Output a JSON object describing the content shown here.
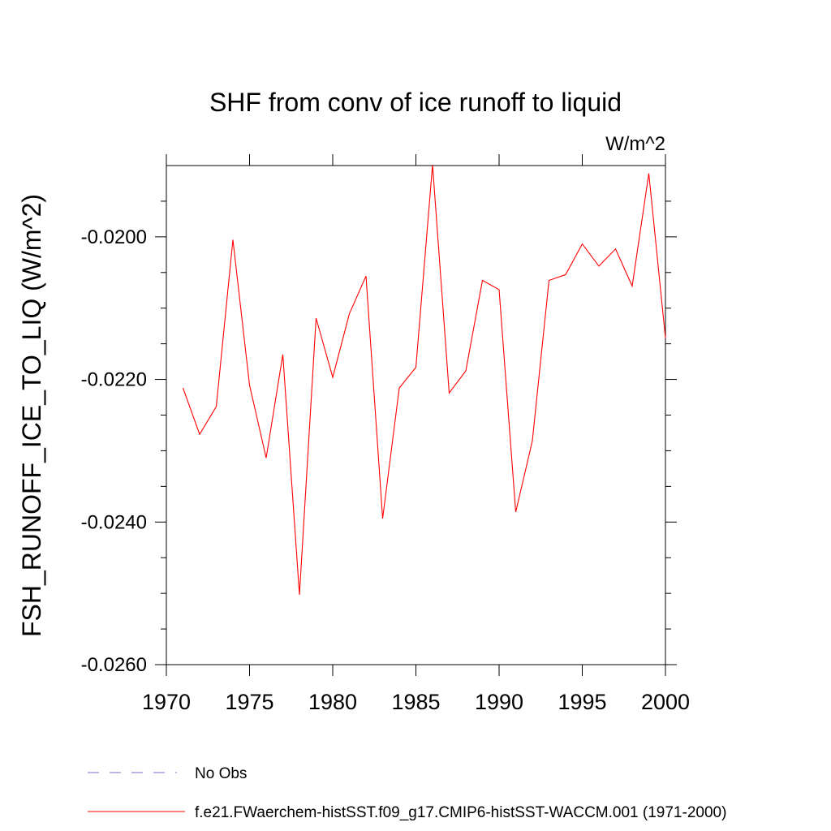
{
  "chart_data": {
    "type": "line",
    "title": "SHF from conv of ice runoff to liquid",
    "units_label": "W/m^2",
    "ylabel": "FSH_RUNOFF_ICE_TO_LIQ  (W/m^2)",
    "xlabel": "",
    "xlim": [
      1970,
      2000
    ],
    "ylim": [
      -0.026,
      -0.019
    ],
    "x_ticks": [
      1970,
      1975,
      1980,
      1985,
      1990,
      1995,
      2000
    ],
    "x_tick_labels": [
      "1970",
      "1975",
      "1980",
      "1985",
      "1990",
      "1995",
      "2000"
    ],
    "y_ticks": [
      -0.026,
      -0.024,
      -0.022,
      -0.02
    ],
    "y_tick_labels": [
      "-0.0260",
      "-0.0240",
      "-0.0220",
      "-0.0200"
    ],
    "grid": false,
    "legend_placement": "bottom",
    "series": [
      {
        "name": "f.e21.FWaerchem-histSST.f09_g17.CMIP6-histSST-WACCM.001 (1971-2000)",
        "color": "#ff0000",
        "x": [
          1971,
          1972,
          1973,
          1974,
          1975,
          1976,
          1977,
          1978,
          1979,
          1980,
          1981,
          1982,
          1983,
          1984,
          1985,
          1986,
          1987,
          1988,
          1989,
          1990,
          1991,
          1992,
          1993,
          1994,
          1995,
          1996,
          1997,
          1998,
          1999,
          2000
        ],
        "values": [
          -0.02212,
          -0.02277,
          -0.02238,
          -0.02004,
          -0.02208,
          -0.0231,
          -0.02165,
          -0.02502,
          -0.02114,
          -0.02197,
          -0.02108,
          -0.02055,
          -0.02395,
          -0.02212,
          -0.02183,
          -0.01899,
          -0.02219,
          -0.02188,
          -0.02061,
          -0.02074,
          -0.02386,
          -0.02286,
          -0.02061,
          -0.02053,
          -0.0201,
          -0.02041,
          -0.02017,
          -0.02069,
          -0.01911,
          -0.02142
        ]
      }
    ],
    "legend": [
      {
        "label": "No Obs",
        "color": "#7b6fcf",
        "style": "dashed"
      },
      {
        "label": "f.e21.FWaerchem-histSST.f09_g17.CMIP6-histSST-WACCM.001 (1971-2000)",
        "color": "#ff0000",
        "style": "solid"
      }
    ]
  }
}
